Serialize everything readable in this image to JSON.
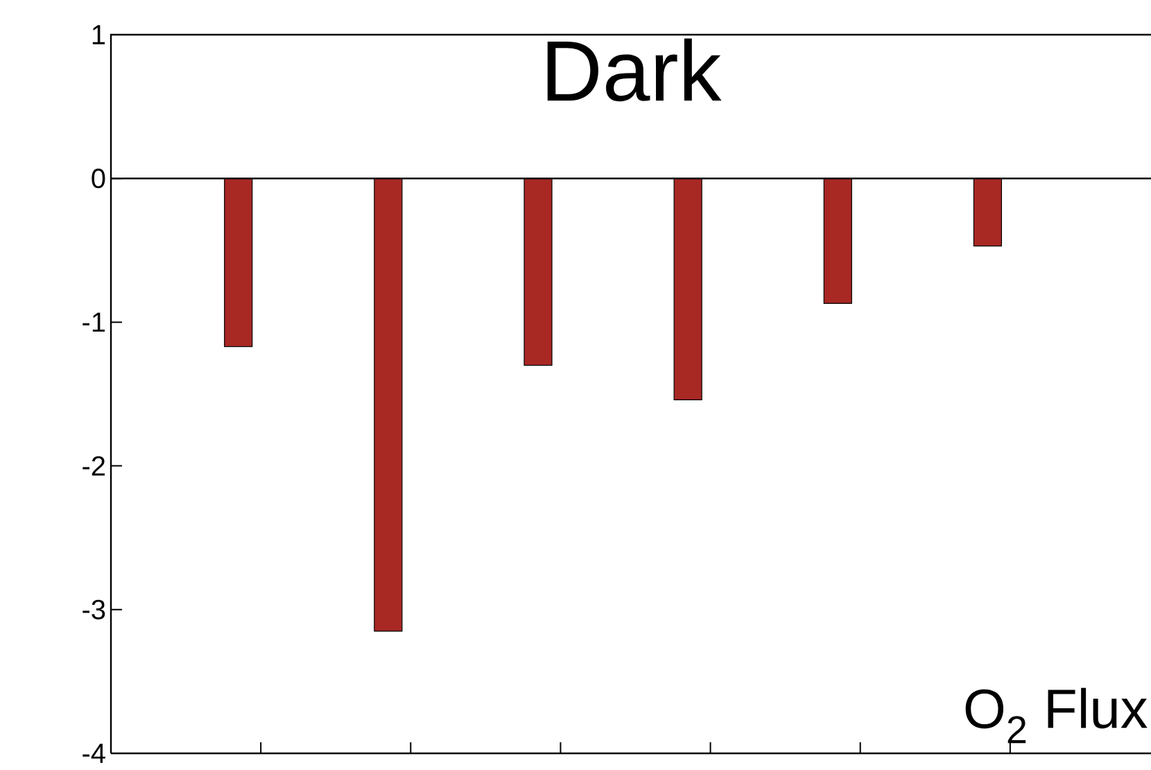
{
  "chart_data": {
    "type": "bar",
    "title": "Dark",
    "categories": [
      null,
      null,
      null,
      null,
      null,
      null
    ],
    "values": [
      -1.17,
      -3.15,
      -1.3,
      -1.54,
      -0.87,
      -0.47
    ],
    "color": "#a82824",
    "ylim": [
      -4,
      1
    ],
    "yticks": [
      -4,
      -3,
      -2,
      -1,
      0,
      1
    ],
    "ref_lines": [
      {
        "axis": "y",
        "value": 0
      }
    ],
    "annotations": [
      "O$_{2}$ Flux"
    ],
    "grid": false
  }
}
